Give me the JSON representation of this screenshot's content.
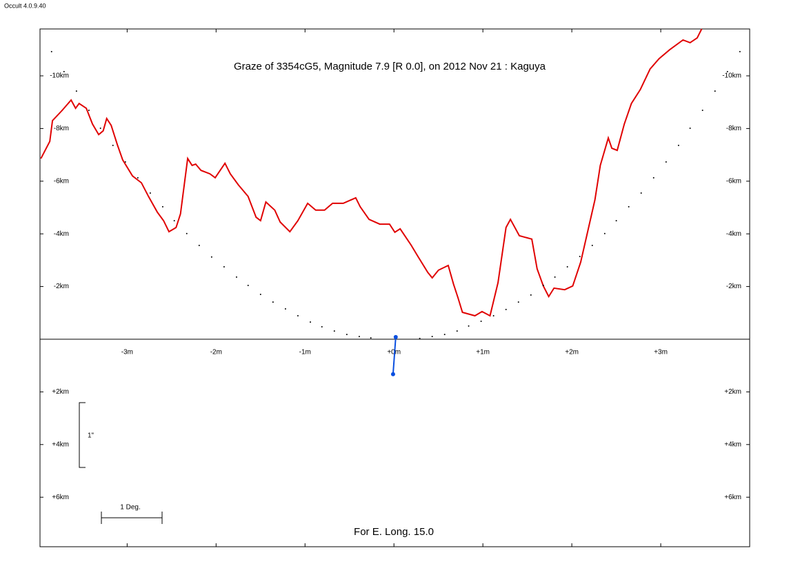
{
  "app_version": "Occult 4.0.9.40",
  "chart_data": {
    "type": "line",
    "title": "Graze of  3354cG5,  Magnitude 7.9 [R 0.0],  on 2012 Nov 21  :  Kaguya",
    "footer": "For E. Long. 15.0",
    "scale_arcsec_label": "1\"",
    "scale_degree_label": "1 Deg.",
    "xlim": [
      -3.98,
      4.0
    ],
    "ylim": [
      -11.78,
      7.88
    ],
    "xticks": [
      {
        "value": -3,
        "label": "-3m"
      },
      {
        "value": -2,
        "label": "-2m"
      },
      {
        "value": -1,
        "label": "-1m"
      },
      {
        "value": 0,
        "label": "+0m"
      },
      {
        "value": 1,
        "label": "+1m"
      },
      {
        "value": 2,
        "label": "+2m"
      },
      {
        "value": 3,
        "label": "+3m"
      }
    ],
    "yticks": [
      {
        "value": -10,
        "label": "-10km"
      },
      {
        "value": -8,
        "label": "-8km"
      },
      {
        "value": -6,
        "label": "-6km"
      },
      {
        "value": -4,
        "label": "-4km"
      },
      {
        "value": -2,
        "label": "-2km"
      },
      {
        "value": 2,
        "label": "+2km"
      },
      {
        "value": 4,
        "label": "+4km"
      },
      {
        "value": 6,
        "label": "+6km"
      }
    ],
    "series": [
      {
        "mode": "line",
        "color": "#e00000",
        "x": [
          -3.97,
          -3.87,
          -3.84,
          -3.73,
          -3.63,
          -3.58,
          -3.54,
          -3.46,
          -3.39,
          -3.32,
          -3.27,
          -3.23,
          -3.18,
          -3.11,
          -3.05,
          -2.94,
          -2.84,
          -2.76,
          -2.66,
          -2.59,
          -2.53,
          -2.45,
          -2.4,
          -2.32,
          -2.27,
          -2.23,
          -2.17,
          -2.07,
          -2.01,
          -1.9,
          -1.84,
          -1.75,
          -1.64,
          -1.55,
          -1.5,
          -1.44,
          -1.34,
          -1.28,
          -1.17,
          -1.08,
          -0.97,
          -0.88,
          -0.78,
          -0.69,
          -0.57,
          -0.43,
          -0.38,
          -0.28,
          -0.16,
          -0.05,
          0.01,
          0.07,
          0.19,
          0.27,
          0.38,
          0.43,
          0.5,
          0.61,
          0.67,
          0.72,
          0.77,
          0.91,
          0.99,
          1.08,
          1.17,
          1.26,
          1.31,
          1.41,
          1.55,
          1.61,
          1.68,
          1.74,
          1.8,
          1.92,
          2.01,
          2.1,
          2.18,
          2.26,
          2.32,
          2.41,
          2.45,
          2.51,
          2.59,
          2.67,
          2.77,
          2.88,
          2.98,
          3.1,
          3.25,
          3.33,
          3.41,
          3.46
        ],
        "values": [
          -6.86,
          -7.51,
          -8.3,
          -8.69,
          -9.08,
          -8.77,
          -8.95,
          -8.77,
          -8.17,
          -7.77,
          -7.91,
          -8.38,
          -8.12,
          -7.38,
          -6.81,
          -6.2,
          -5.94,
          -5.42,
          -4.82,
          -4.5,
          -4.08,
          -4.24,
          -4.76,
          -6.86,
          -6.6,
          -6.65,
          -6.41,
          -6.28,
          -6.13,
          -6.68,
          -6.28,
          -5.86,
          -5.42,
          -4.63,
          -4.5,
          -5.21,
          -4.9,
          -4.45,
          -4.08,
          -4.5,
          -5.16,
          -4.9,
          -4.9,
          -5.16,
          -5.16,
          -5.37,
          -5.03,
          -4.55,
          -4.37,
          -4.37,
          -4.06,
          -4.19,
          -3.59,
          -3.14,
          -2.54,
          -2.33,
          -2.62,
          -2.8,
          -2.09,
          -1.57,
          -1.02,
          -0.89,
          -1.05,
          -0.89,
          -2.15,
          -4.24,
          -4.55,
          -3.93,
          -3.8,
          -2.67,
          -2.02,
          -1.62,
          -1.94,
          -1.88,
          -2.02,
          -2.93,
          -4.11,
          -5.29,
          -6.6,
          -7.64,
          -7.25,
          -7.17,
          -8.17,
          -8.95,
          -9.48,
          -10.26,
          -10.65,
          -10.99,
          -11.36,
          -11.26,
          -11.44,
          -11.78
        ]
      },
      {
        "mode": "dots",
        "color": "#000000",
        "x": [
          -3.85,
          -3.71,
          -3.57,
          -3.43,
          -3.3,
          -3.16,
          -3.02,
          -2.88,
          -2.74,
          -2.6,
          -2.47,
          -2.33,
          -2.19,
          -2.05,
          -1.91,
          -1.77,
          -1.64,
          -1.5,
          -1.36,
          -1.22,
          -1.08,
          -0.94,
          -0.81,
          -0.67,
          -0.53,
          -0.39,
          -0.26,
          0.29,
          0.43,
          0.57,
          0.71,
          0.84,
          0.98,
          1.12,
          1.26,
          1.4,
          1.54,
          1.68,
          1.81,
          1.95,
          2.09,
          2.23,
          2.37,
          2.5,
          2.64,
          2.78,
          2.92,
          3.06,
          3.2,
          3.33,
          3.47,
          3.61,
          3.75,
          3.89
        ],
        "values": [
          -10.92,
          -10.16,
          -9.42,
          -8.69,
          -8.01,
          -7.36,
          -6.73,
          -6.13,
          -5.55,
          -5.03,
          -4.5,
          -4.01,
          -3.56,
          -3.12,
          -2.75,
          -2.36,
          -2.04,
          -1.7,
          -1.41,
          -1.15,
          -0.89,
          -0.65,
          -0.47,
          -0.31,
          -0.18,
          -0.1,
          -0.05,
          -0.03,
          -0.1,
          -0.18,
          -0.31,
          -0.5,
          -0.68,
          -0.89,
          -1.13,
          -1.41,
          -1.68,
          -2.04,
          -2.36,
          -2.75,
          -3.14,
          -3.56,
          -4.01,
          -4.5,
          -5.03,
          -5.55,
          -6.13,
          -6.73,
          -7.36,
          -8.01,
          -8.69,
          -9.42,
          -10.16,
          -10.92
        ]
      },
      {
        "mode": "line-markers",
        "color": "#0a4fe0",
        "x": [
          0.02,
          -0.01
        ],
        "values": [
          -0.08,
          1.33
        ]
      }
    ]
  }
}
